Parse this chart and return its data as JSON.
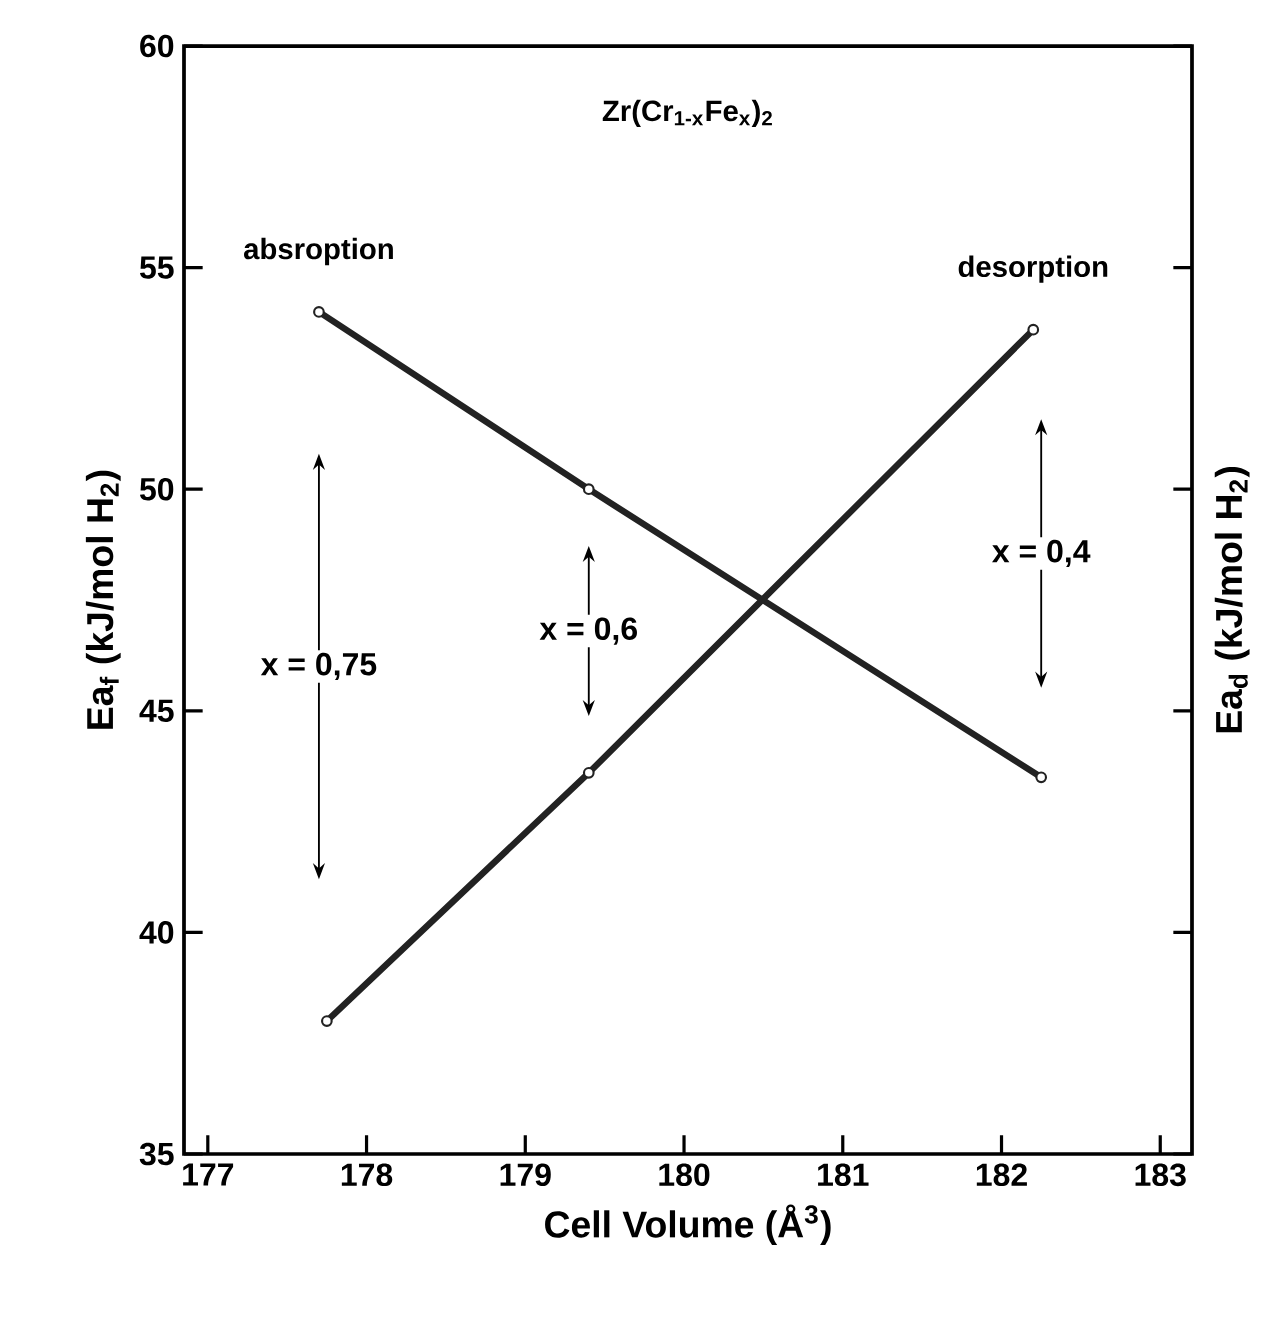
{
  "chart_data": {
    "type": "line",
    "title": "Zr(Cr$_{1-x}$Fe$_{x}$)$_{2}$",
    "xlabel": "Cell Volume (Å$^{3}$)",
    "ylabel": "Ea$_{f}$ (kJ/mol H$_{2}$)",
    "y2label": "Ea$_{d}$ (kJ/mol H$_{2}$)",
    "xlim": [
      176.85,
      183.2
    ],
    "xticks": [
      177,
      178,
      179,
      180,
      181,
      182,
      183
    ],
    "ylim": [
      35,
      60
    ],
    "yticks": [
      35,
      40,
      45,
      50,
      55,
      60
    ],
    "marker": "circle",
    "line_style": "solid",
    "grid": false,
    "series": [
      {
        "name": "absroption",
        "color": "#222222",
        "x": [
          177.7,
          179.4,
          182.25
        ],
        "values": [
          54.0,
          50.0,
          43.5
        ]
      },
      {
        "name": "desorption",
        "color": "#222222",
        "x": [
          177.75,
          179.4,
          182.2
        ],
        "values": [
          38.0,
          43.6,
          53.6
        ]
      }
    ],
    "annotations": [
      "x = 0,75",
      "x = 0,6",
      "x = 0,4"
    ]
  }
}
